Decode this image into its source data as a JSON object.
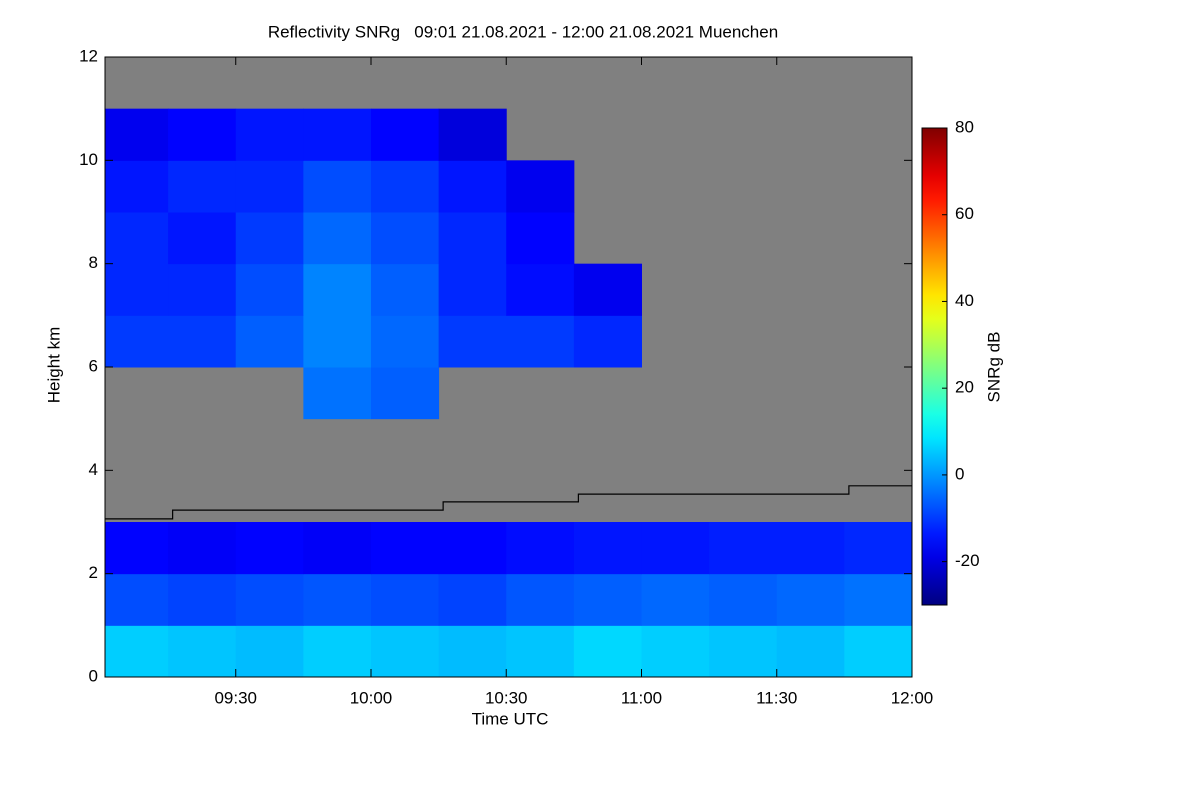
{
  "chart_data": {
    "type": "heatmap",
    "title": "Reflectivity SNRg   09:01 21.08.2021 - 12:00 21.08.2021 Muenchen",
    "xlabel": "Time UTC",
    "ylabel": "Height km",
    "xlim": [
      9.0167,
      12.0
    ],
    "xticks": [
      {
        "value": 9.5,
        "label": "09:30"
      },
      {
        "value": 10.0,
        "label": "10:00"
      },
      {
        "value": 10.5,
        "label": "10:30"
      },
      {
        "value": 11.0,
        "label": "11:00"
      },
      {
        "value": 11.5,
        "label": "11:30"
      },
      {
        "value": 12.0,
        "label": "12:00"
      }
    ],
    "ylim": [
      0,
      12
    ],
    "yticks": [
      0,
      2,
      4,
      6,
      8,
      10,
      12
    ],
    "colorbar_label": "SNRg dB",
    "colormap": "jet",
    "zlim": [
      -30,
      80
    ],
    "zticks": [
      -20,
      0,
      20,
      40,
      60,
      80
    ],
    "nan_color": "#808080",
    "x_edges": [
      9.0167,
      9.25,
      9.5,
      9.75,
      10.0,
      10.25,
      10.5,
      10.75,
      11.0,
      11.25,
      11.5,
      11.75,
      12.0
    ],
    "y_edges": [
      0,
      1,
      2,
      3,
      4,
      5,
      6,
      7,
      8,
      9,
      10,
      11,
      12
    ],
    "z": [
      [
        6,
        5,
        4,
        6,
        5,
        4,
        5,
        7,
        6,
        5,
        4,
        6
      ],
      [
        -8,
        -9,
        -8,
        -7,
        -8,
        -9,
        -7,
        -6,
        -5,
        -6,
        -5,
        -4
      ],
      [
        -16,
        -17,
        -16,
        -17,
        -16,
        -16,
        -15,
        -14,
        -14,
        -13,
        -13,
        -12
      ],
      [
        null,
        null,
        null,
        null,
        null,
        null,
        null,
        null,
        null,
        null,
        null,
        null
      ],
      [
        null,
        null,
        null,
        null,
        null,
        null,
        null,
        null,
        null,
        null,
        null,
        null
      ],
      [
        null,
        null,
        null,
        -4,
        -6,
        null,
        null,
        null,
        null,
        null,
        null,
        null
      ],
      [
        -10,
        -10,
        -6,
        -2,
        -5,
        -10,
        -10,
        -12,
        null,
        null,
        null,
        null
      ],
      [
        -12,
        -12,
        -8,
        -2,
        -6,
        -12,
        -15,
        -18,
        null,
        null,
        null,
        null
      ],
      [
        -12,
        -14,
        -10,
        -5,
        -8,
        -12,
        -16,
        null,
        null,
        null,
        null,
        null
      ],
      [
        -14,
        -12,
        -12,
        -8,
        -10,
        -14,
        -18,
        null,
        null,
        null,
        null,
        null
      ],
      [
        -18,
        -16,
        -14,
        -14,
        -16,
        -20,
        null,
        null,
        null,
        null,
        null,
        null
      ],
      [
        null,
        null,
        null,
        null,
        null,
        null,
        null,
        null,
        null,
        null,
        null,
        null
      ]
    ],
    "line": {
      "color": "#000000",
      "drawstyle": "steps-post",
      "x": [
        9.0167,
        9.2667,
        10.2667,
        10.7667,
        11.7667,
        12.0
      ],
      "values": [
        3.06,
        3.23,
        3.39,
        3.54,
        3.7,
        3.7
      ]
    }
  }
}
